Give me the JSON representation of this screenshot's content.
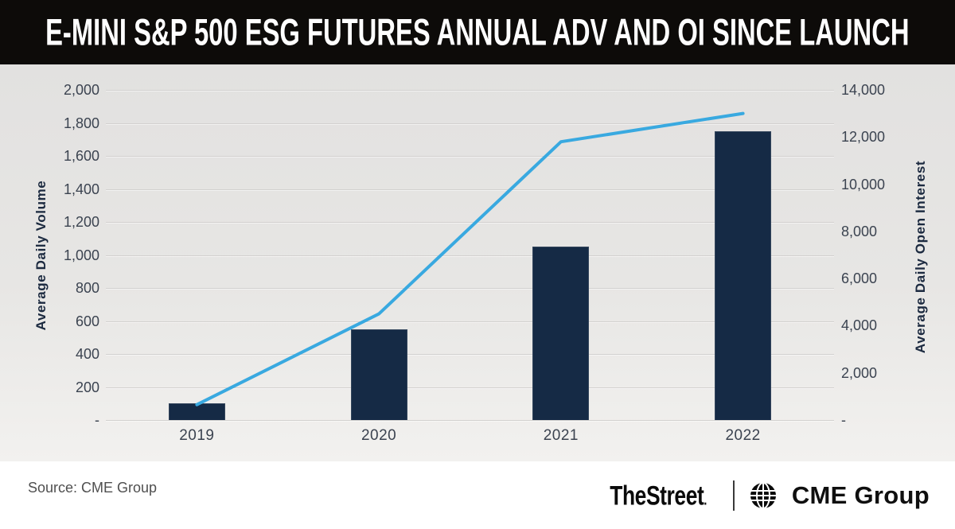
{
  "title": "E-MINI S&P 500 ESG FUTURES ANNUAL ADV AND OI SINCE LAUNCH",
  "source": "Source: CME Group",
  "footer": {
    "brand_left": "TheStreet",
    "brand_dot": ".",
    "brand_right": "CME Group",
    "globe_icon": "globe-icon"
  },
  "colors": {
    "banner_bg": "#0d0b09",
    "banner_text": "#ffffff",
    "bar_fill": "#152a45",
    "line_stroke": "#39a9e0",
    "gridline": "#d2d0cf",
    "tick_text": "#3b4350",
    "axis_title_text": "#1c2a40",
    "chart_bg_top": "#e2e1e0",
    "chart_bg_bottom": "#f2f1ef",
    "footer_bg": "#ffffff",
    "source_text": "#4f4f4f",
    "logo_text": "#0a0a0a"
  },
  "chart_data": {
    "type": "bar",
    "subtype": "combo bar+line, dual axis",
    "categories": [
      "2019",
      "2020",
      "2021",
      "2022"
    ],
    "series": [
      {
        "name": "Average Daily Volume",
        "type": "bar",
        "axis": "left",
        "color": "#152a45",
        "values": [
          100,
          550,
          1050,
          1750
        ]
      },
      {
        "name": "Average Daily Open Interest",
        "type": "line",
        "axis": "right",
        "color": "#39a9e0",
        "values": [
          650,
          4500,
          11800,
          13000
        ]
      }
    ],
    "left_axis": {
      "label": "Average Daily Volume",
      "min": 0,
      "max": 2000,
      "step": 200,
      "ticks": [
        "2,000",
        "1,800",
        "1,600",
        "1,400",
        "1,200",
        "1,000",
        "800",
        "600",
        "400",
        "200",
        "-"
      ]
    },
    "right_axis": {
      "label": "Average Daily Open Interest",
      "min": 0,
      "max": 14000,
      "step": 2000,
      "ticks": [
        "14,000",
        "12,000",
        "10,000",
        "8,000",
        "6,000",
        "4,000",
        "2,000",
        "-"
      ]
    },
    "grid": true,
    "legend": "none"
  }
}
